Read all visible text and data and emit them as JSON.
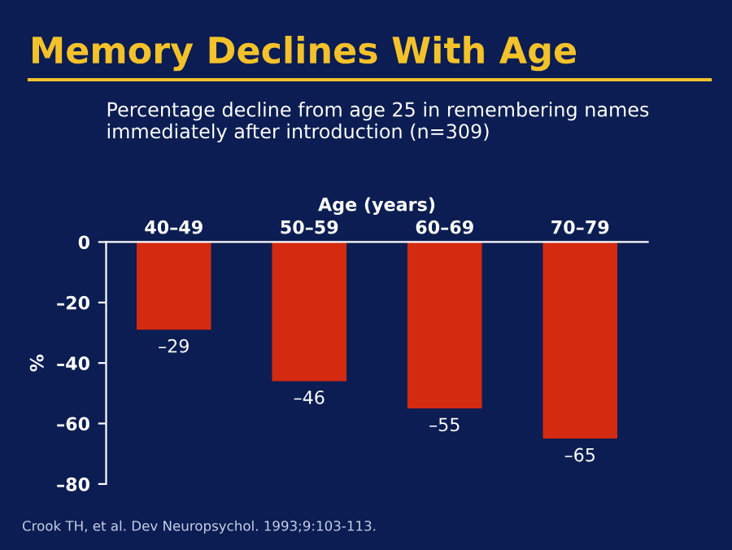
{
  "chart_data": {
    "type": "bar",
    "title": "Memory Declines With Age",
    "subtitle": "Percentage decline from age 25 in remembering names\nimmediately after introduction (n=309)",
    "xlabel": "Age (years)",
    "ylabel": "%",
    "categories": [
      "40–49",
      "50–59",
      "60–69",
      "70–79"
    ],
    "values": [
      -29,
      -46,
      -55,
      -65
    ],
    "color": "#d42a10",
    "value_labels": [
      "–29",
      "–46",
      "–55",
      "–65"
    ],
    "ylim": [
      -80,
      0
    ],
    "yticks": [
      0,
      {
        "value": -20,
        "label": "–20"
      },
      {
        "value": -40,
        "label": "–40"
      },
      {
        "value": -60,
        "label": "–60"
      },
      {
        "value": -80,
        "label": "–80"
      }
    ],
    "grid": false,
    "annotations": [
      "Crook TH, et al. Dev Neuropsychol. 1993;9:103-113."
    ]
  }
}
